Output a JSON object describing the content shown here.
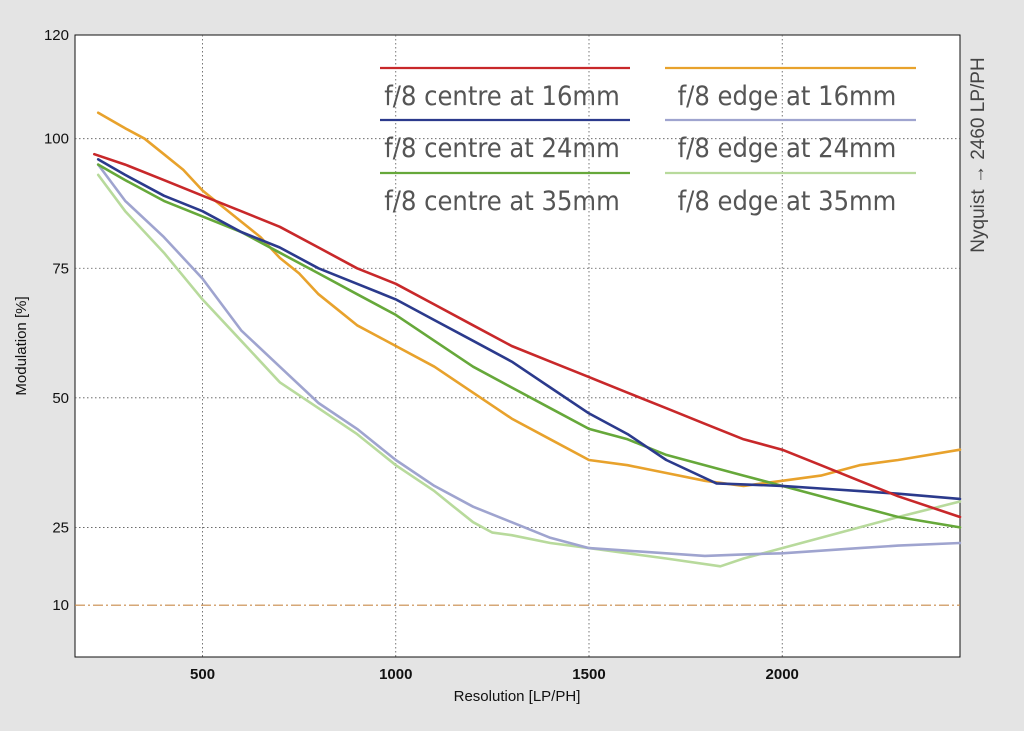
{
  "chart_data": {
    "type": "line",
    "xlabel": "Resolution [LP/PH]",
    "ylabel": "Modulation [%]",
    "side_label": "Nyquist → 2460 LP/PH",
    "xlim": [
      170,
      2460
    ],
    "ylim": [
      0,
      120
    ],
    "xticks": [
      500,
      1000,
      1500,
      2000
    ],
    "yticks": [
      10,
      25,
      50,
      75,
      100,
      120
    ],
    "grid": true,
    "reference_line": 10,
    "legend_position": "top-right",
    "series": [
      {
        "name": "f/8 centre at 16mm",
        "color": "#c8282a",
        "x": [
          220,
          300,
          400,
          500,
          600,
          700,
          800,
          900,
          1000,
          1100,
          1200,
          1300,
          1400,
          1500,
          1600,
          1700,
          1800,
          1900,
          2000,
          2100,
          2200,
          2300,
          2460
        ],
        "y": [
          97,
          95,
          92,
          89,
          86,
          83,
          79,
          75,
          72,
          68,
          64,
          60,
          57,
          54,
          51,
          48,
          45,
          42,
          40,
          37,
          34,
          31,
          27
        ]
      },
      {
        "name": "f/8 centre at 24mm",
        "color": "#2b3a8c",
        "x": [
          230,
          300,
          400,
          500,
          600,
          700,
          800,
          900,
          1000,
          1100,
          1200,
          1300,
          1400,
          1500,
          1600,
          1700,
          1830,
          1900,
          2000,
          2100,
          2200,
          2300,
          2460
        ],
        "y": [
          96,
          93,
          89,
          86,
          82,
          79,
          75,
          72,
          69,
          65,
          61,
          57,
          52,
          47,
          43,
          38,
          33.5,
          33.3,
          33,
          32.5,
          32,
          31.5,
          30.5
        ]
      },
      {
        "name": "f/8 centre at 35mm",
        "color": "#66a83a",
        "x": [
          230,
          300,
          400,
          500,
          600,
          700,
          800,
          900,
          1000,
          1100,
          1200,
          1300,
          1400,
          1500,
          1600,
          1700,
          1800,
          1900,
          2000,
          2100,
          2200,
          2300,
          2460
        ],
        "y": [
          95,
          92,
          88,
          85,
          82,
          78,
          74,
          70,
          66,
          61,
          56,
          52,
          48,
          44,
          42,
          39,
          37,
          35,
          33,
          31,
          29,
          27,
          25
        ]
      },
      {
        "name": "f/8 edge at 16mm",
        "color": "#e8a22c",
        "x": [
          230,
          300,
          350,
          400,
          450,
          500,
          550,
          600,
          650,
          700,
          750,
          800,
          850,
          900,
          950,
          1000,
          1100,
          1200,
          1300,
          1400,
          1500,
          1600,
          1700,
          1800,
          1900,
          2000,
          2100,
          2200,
          2300,
          2460
        ],
        "y": [
          105,
          102,
          100,
          97,
          94,
          90,
          87,
          84,
          81,
          77,
          74,
          70,
          67,
          64,
          62,
          60,
          56,
          51,
          46,
          42,
          38,
          37,
          35.5,
          34,
          33,
          34,
          35,
          37,
          38,
          40
        ]
      },
      {
        "name": "f/8 edge at 24mm",
        "color": "#9fa4cf",
        "x": [
          230,
          300,
          400,
          500,
          600,
          700,
          800,
          900,
          1000,
          1100,
          1200,
          1300,
          1400,
          1500,
          1600,
          1700,
          1800,
          1900,
          2000,
          2100,
          2200,
          2300,
          2460
        ],
        "y": [
          95,
          88,
          81,
          73,
          63,
          56,
          49,
          44,
          38,
          33,
          29,
          26,
          23,
          21,
          20.5,
          20,
          19.5,
          19.8,
          20,
          20.5,
          21,
          21.5,
          22
        ]
      },
      {
        "name": "f/8 edge at 35mm",
        "color": "#b8da9c",
        "x": [
          230,
          300,
          400,
          500,
          600,
          700,
          800,
          900,
          1000,
          1100,
          1150,
          1200,
          1250,
          1300,
          1400,
          1500,
          1600,
          1700,
          1840,
          1900,
          2000,
          2100,
          2200,
          2300,
          2460
        ],
        "y": [
          93,
          86,
          78,
          69,
          61,
          53,
          48,
          43,
          37,
          32,
          29,
          26,
          24,
          23.5,
          22,
          21,
          20,
          19,
          17.5,
          19,
          21,
          23,
          25,
          27,
          30
        ]
      }
    ]
  }
}
